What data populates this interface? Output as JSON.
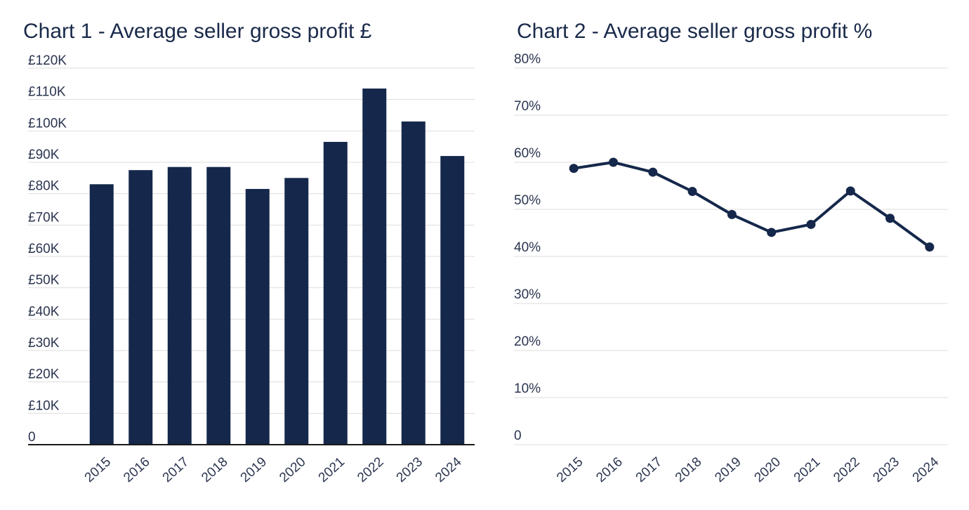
{
  "chart_data": [
    {
      "type": "bar",
      "title": "Chart 1 - Average seller gross profit £",
      "categories": [
        "2015",
        "2016",
        "2017",
        "2018",
        "2019",
        "2020",
        "2021",
        "2022",
        "2023",
        "2024"
      ],
      "values": [
        83,
        87.5,
        88.5,
        88.5,
        81.5,
        85,
        96.5,
        113.5,
        103,
        92
      ],
      "ylim": [
        0,
        120
      ],
      "yticks": [
        "0",
        "£10K",
        "£20K",
        "£30K",
        "£40K",
        "£50K",
        "£60K",
        "£70K",
        "£80K",
        "£90K",
        "£100K",
        "£110K",
        "£120K"
      ],
      "grid": true,
      "color": "#15284b"
    },
    {
      "type": "line",
      "title": "Chart 2 - Average seller gross profit %",
      "categories": [
        "2015",
        "2016",
        "2017",
        "2018",
        "2019",
        "2020",
        "2021",
        "2022",
        "2023",
        "2024"
      ],
      "values": [
        58.7,
        60,
        57.9,
        53.8,
        48.9,
        45.1,
        46.8,
        53.9,
        48.1,
        42
      ],
      "ylim": [
        0,
        80
      ],
      "yticks": [
        "0",
        "10%",
        "20%",
        "30%",
        "40%",
        "50%",
        "60%",
        "70%",
        "80%"
      ],
      "grid": true,
      "color": "#15284b"
    }
  ]
}
